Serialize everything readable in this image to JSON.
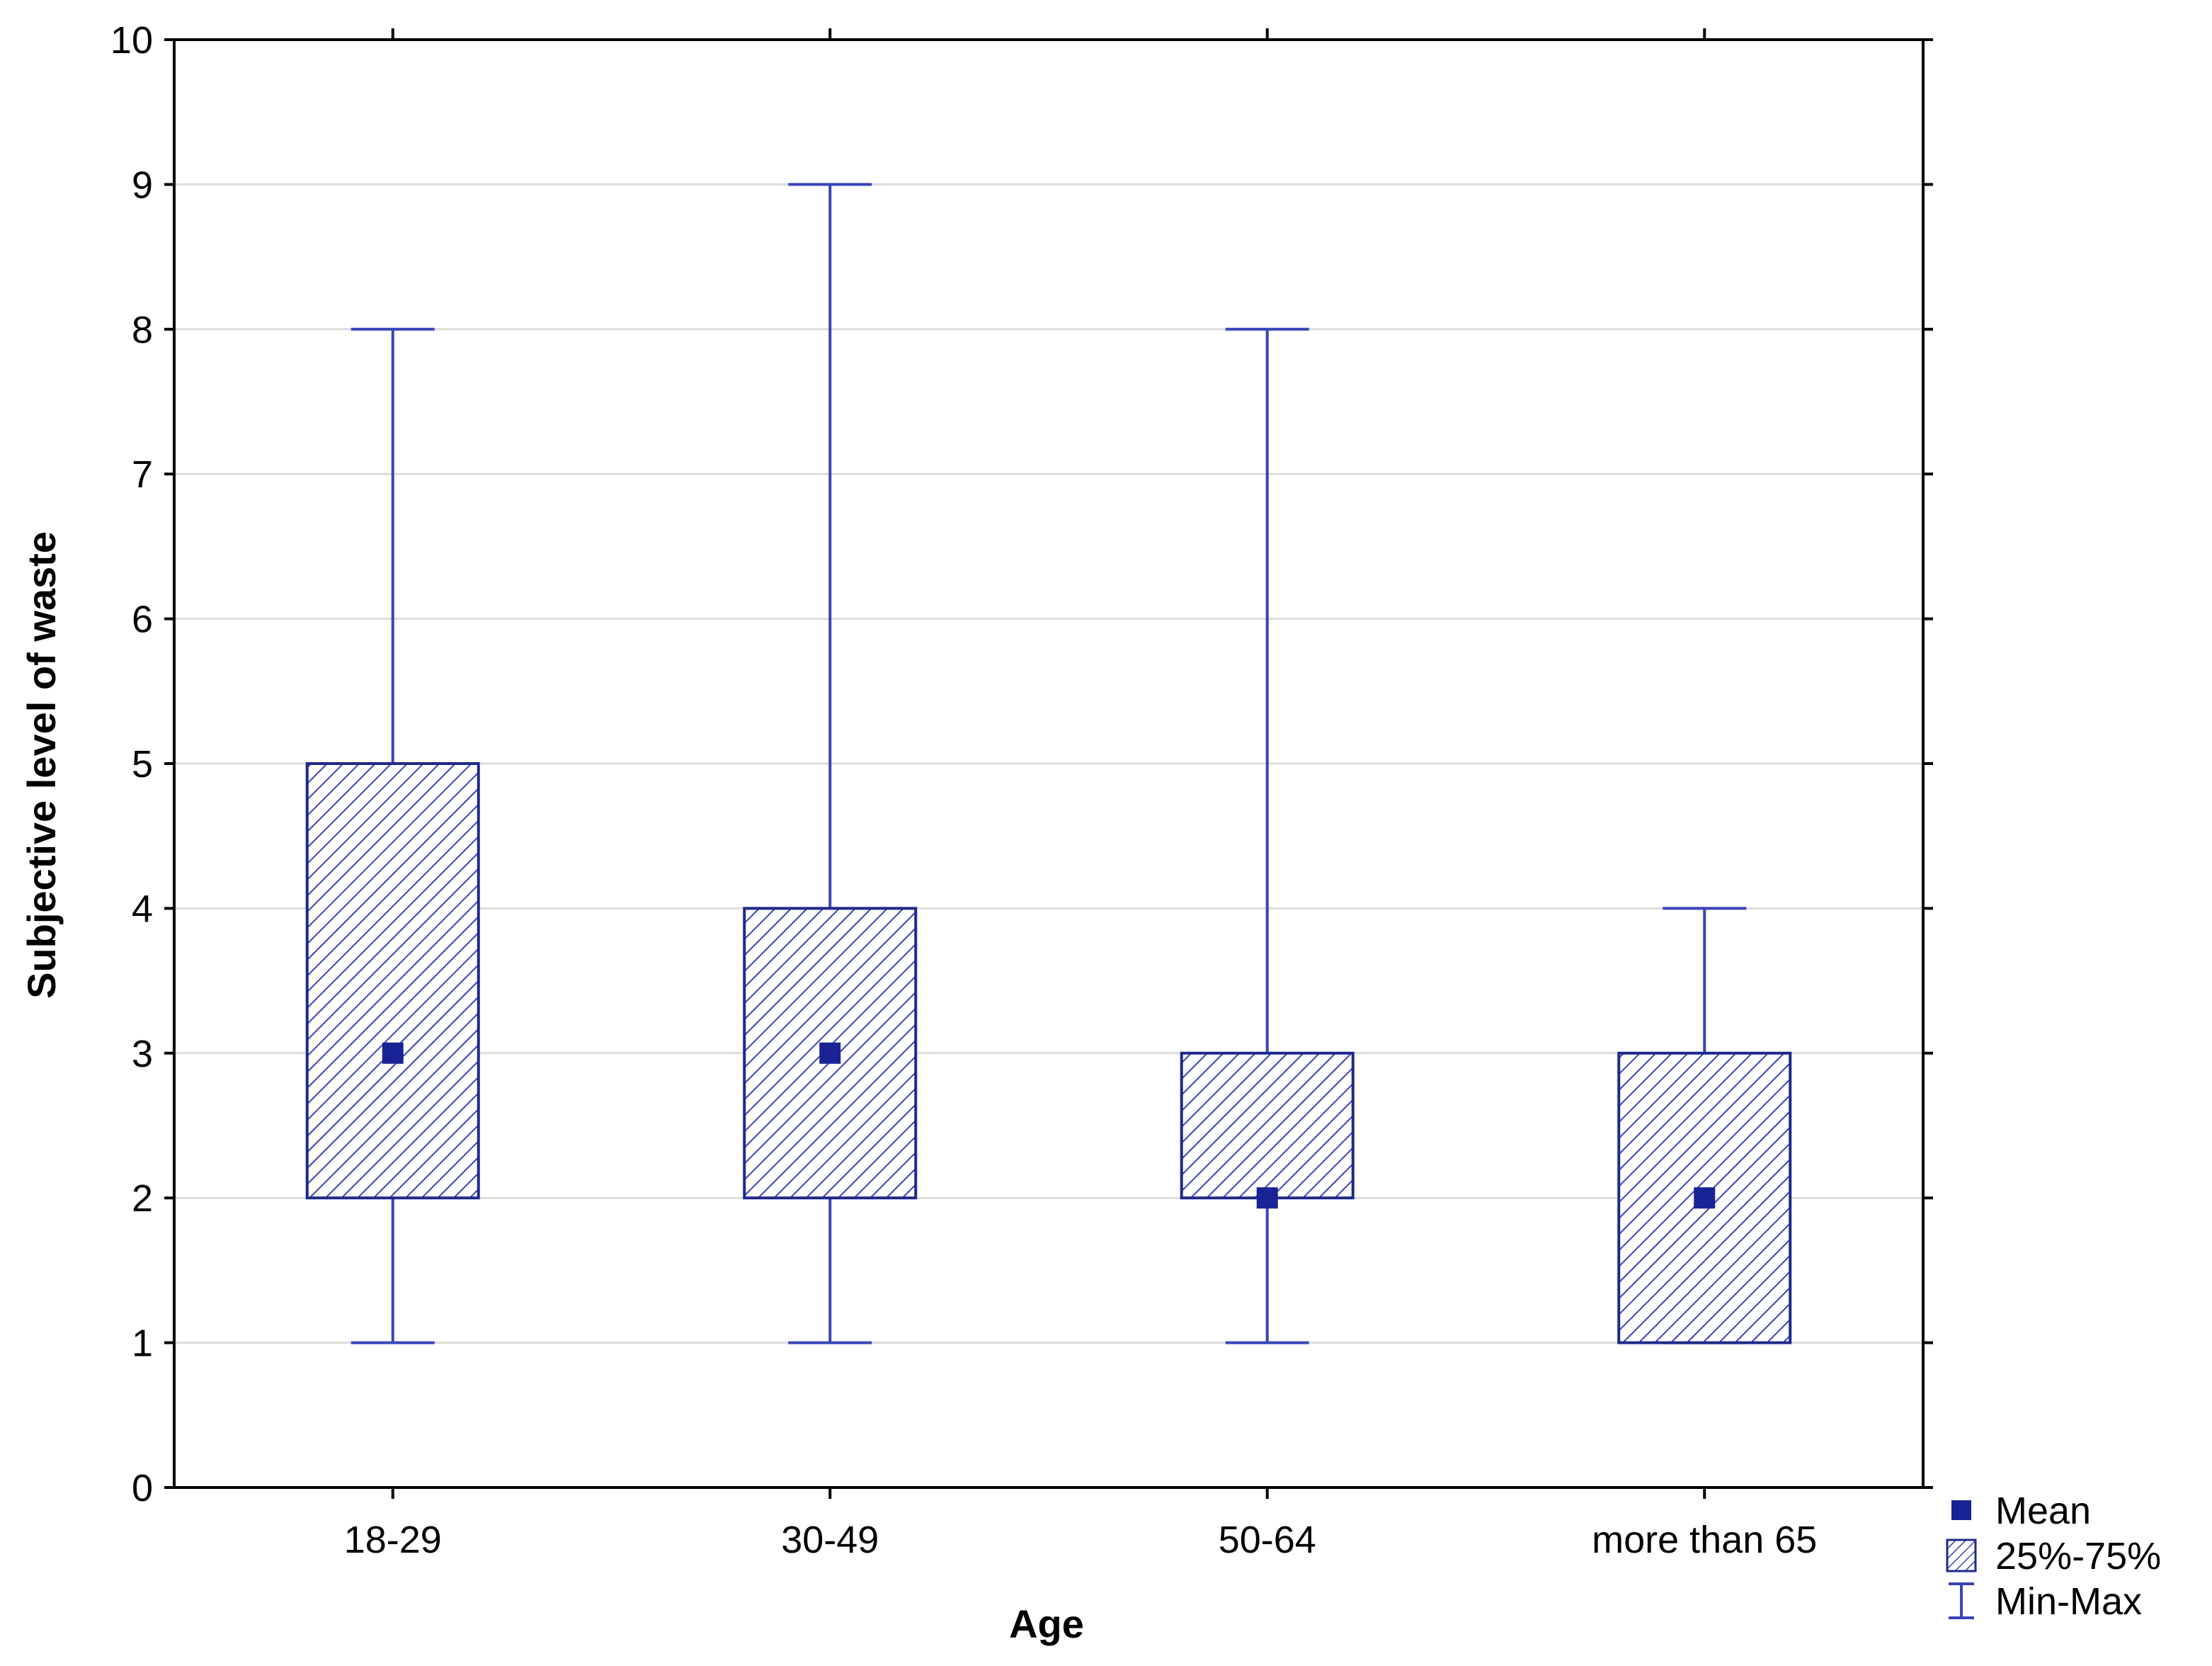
{
  "chart_data": {
    "type": "boxplot",
    "title": "",
    "xlabel": "Age",
    "ylabel": "Subjective level of waste",
    "ylim": [
      0,
      10
    ],
    "yticks": [
      0,
      1,
      2,
      3,
      4,
      5,
      6,
      7,
      8,
      9,
      10
    ],
    "grid": true,
    "categories": [
      "18-29",
      "30-49",
      "50-64",
      "more than 65"
    ],
    "series": [
      {
        "category": "18-29",
        "min": 1,
        "q1": 2,
        "q3": 5,
        "max": 8,
        "mean": 3
      },
      {
        "category": "30-49",
        "min": 1,
        "q1": 2,
        "q3": 4,
        "max": 9,
        "mean": 3
      },
      {
        "category": "50-64",
        "min": 1,
        "q1": 2,
        "q3": 3,
        "max": 8,
        "mean": 2
      },
      {
        "category": "more than 65",
        "min": 1,
        "q1": 1,
        "q3": 3,
        "max": 4,
        "mean": 2
      }
    ],
    "legend": {
      "placement": "bottom-right",
      "items": [
        {
          "symbol": "mean-marker",
          "label": "Mean"
        },
        {
          "symbol": "hatched-box",
          "label": "25%-75%"
        },
        {
          "symbol": "whisker",
          "label": "Min-Max"
        }
      ]
    },
    "colors": {
      "box_stroke": "#1f2a8c",
      "whisker": "#3a44b8",
      "hatch": "#3a44b8",
      "mean": "#1a2396",
      "grid": "#dcdcdc",
      "axis": "#000000"
    }
  }
}
